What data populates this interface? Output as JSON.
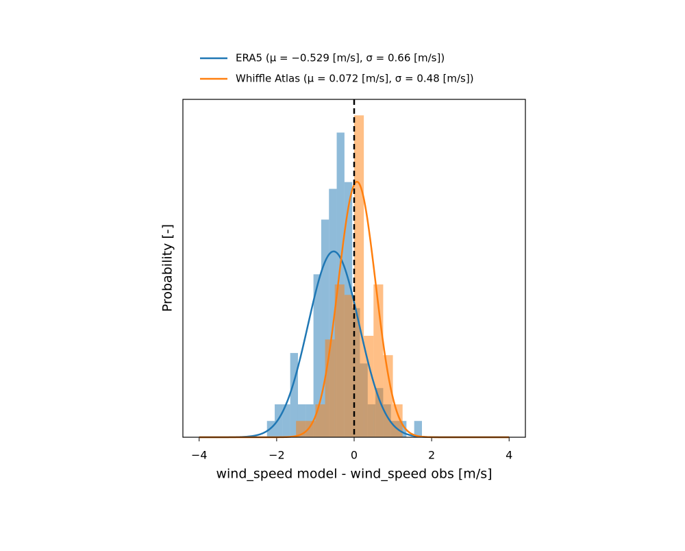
{
  "chart_data": {
    "type": "histogram",
    "xlabel": "wind_speed model - wind_speed obs [m/s]",
    "ylabel": "Probability [-]",
    "xlim": [
      -4.42,
      4.42
    ],
    "ylim": [
      0,
      1.099
    ],
    "xticks": [
      {
        "value": -4,
        "label": "−4"
      },
      {
        "value": -2,
        "label": "−2"
      },
      0,
      2,
      4
    ],
    "vline": 0,
    "legend": "above",
    "series": [
      {
        "name": "ERA5 (μ = −0.529 [m/s], σ = 0.66 [m/s])",
        "color": "#1f77b4",
        "mu": -0.529,
        "sigma": 0.66,
        "bins": [
          -2.25,
          -2.05,
          -1.85,
          -1.65,
          -1.45,
          -1.25,
          -1.05,
          -0.85,
          -0.65,
          -0.45,
          -0.25,
          -0.05,
          0.15,
          0.35,
          0.55,
          0.75,
          0.95,
          1.15,
          1.35,
          1.55,
          1.75
        ],
        "values": [
          0.053,
          0.107,
          0.107,
          0.274,
          0.107,
          0.107,
          0.53,
          0.708,
          0.808,
          0.991,
          0.83,
          0.42,
          0.24,
          0.107,
          0.16,
          0.107,
          0.053,
          0.053,
          0,
          0.053
        ]
      },
      {
        "name": "Whiffle Atlas (μ = 0.072 [m/s], σ = 0.48 [m/s])",
        "color": "#ff7f0e",
        "mu": 0.072,
        "sigma": 0.48,
        "bins": [
          -1.5,
          -1.25,
          -1.0,
          -0.75,
          -0.5,
          -0.25,
          0,
          0.25,
          0.5,
          0.75,
          1.0,
          1.25
        ],
        "values": [
          0.053,
          0.053,
          0.107,
          0.318,
          0.497,
          0.463,
          1.047,
          0.33,
          0.497,
          0.267,
          0.107
        ]
      }
    ]
  }
}
